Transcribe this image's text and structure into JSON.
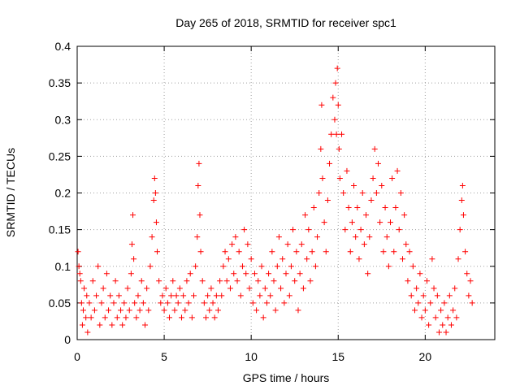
{
  "chart_data": {
    "type": "scatter",
    "title": "Day 265 of 2018, SRMTID for receiver spc1",
    "xlabel": "GPS time / hours",
    "ylabel": "SRMTID / TECUs",
    "xlim": [
      0,
      24
    ],
    "ylim": [
      0,
      0.4
    ],
    "grid": true,
    "marker": "+",
    "series_color": "#ff0000",
    "x_ticks": [
      {
        "value": 0,
        "label": "0"
      },
      {
        "value": 5,
        "label": "5"
      },
      {
        "value": 10,
        "label": "10"
      },
      {
        "value": 15,
        "label": "15"
      },
      {
        "value": 20,
        "label": "20"
      }
    ],
    "y_ticks": [
      {
        "value": 0,
        "label": "0"
      },
      {
        "value": 0.05,
        "label": "0.05"
      },
      {
        "value": 0.1,
        "label": "0.1"
      },
      {
        "value": 0.15,
        "label": "0.15"
      },
      {
        "value": 0.2,
        "label": "0.2"
      },
      {
        "value": 0.25,
        "label": "0.25"
      },
      {
        "value": 0.3,
        "label": "0.3"
      },
      {
        "value": 0.35,
        "label": "0.35"
      },
      {
        "value": 0.4,
        "label": "0.4"
      }
    ],
    "series": [
      {
        "name": "SRMTID",
        "points": [
          [
            0.05,
            0.12
          ],
          [
            0.1,
            0.1
          ],
          [
            0.15,
            0.09
          ],
          [
            0.2,
            0.08
          ],
          [
            0.25,
            0.05
          ],
          [
            0.3,
            0.02
          ],
          [
            0.35,
            0.04
          ],
          [
            0.4,
            0.07
          ],
          [
            0.5,
            0.03
          ],
          [
            0.55,
            0.06
          ],
          [
            0.6,
            0.01
          ],
          [
            0.7,
            0.05
          ],
          [
            0.8,
            0.03
          ],
          [
            0.9,
            0.08
          ],
          [
            1.0,
            0.04
          ],
          [
            1.1,
            0.06
          ],
          [
            1.2,
            0.1
          ],
          [
            1.3,
            0.02
          ],
          [
            1.4,
            0.05
          ],
          [
            1.5,
            0.07
          ],
          [
            1.6,
            0.03
          ],
          [
            1.7,
            0.09
          ],
          [
            1.8,
            0.04
          ],
          [
            1.9,
            0.06
          ],
          [
            2.0,
            0.02
          ],
          [
            2.1,
            0.05
          ],
          [
            2.2,
            0.08
          ],
          [
            2.3,
            0.03
          ],
          [
            2.4,
            0.06
          ],
          [
            2.5,
            0.04
          ],
          [
            2.6,
            0.02
          ],
          [
            2.7,
            0.05
          ],
          [
            2.8,
            0.03
          ],
          [
            2.9,
            0.07
          ],
          [
            3.0,
            0.04
          ],
          [
            3.1,
            0.09
          ],
          [
            3.15,
            0.13
          ],
          [
            3.2,
            0.17
          ],
          [
            3.25,
            0.11
          ],
          [
            3.3,
            0.05
          ],
          [
            3.4,
            0.03
          ],
          [
            3.5,
            0.06
          ],
          [
            3.6,
            0.04
          ],
          [
            3.7,
            0.08
          ],
          [
            3.8,
            0.05
          ],
          [
            3.9,
            0.02
          ],
          [
            4.0,
            0.07
          ],
          [
            4.1,
            0.04
          ],
          [
            4.2,
            0.1
          ],
          [
            4.3,
            0.14
          ],
          [
            4.4,
            0.19
          ],
          [
            4.45,
            0.22
          ],
          [
            4.5,
            0.2
          ],
          [
            4.55,
            0.16
          ],
          [
            4.6,
            0.12
          ],
          [
            4.7,
            0.08
          ],
          [
            4.8,
            0.05
          ],
          [
            4.9,
            0.06
          ],
          [
            5.0,
            0.04
          ],
          [
            5.1,
            0.07
          ],
          [
            5.2,
            0.05
          ],
          [
            5.3,
            0.03
          ],
          [
            5.4,
            0.06
          ],
          [
            5.5,
            0.08
          ],
          [
            5.6,
            0.04
          ],
          [
            5.7,
            0.06
          ],
          [
            5.8,
            0.05
          ],
          [
            5.9,
            0.07
          ],
          [
            6.0,
            0.03
          ],
          [
            6.1,
            0.06
          ],
          [
            6.2,
            0.04
          ],
          [
            6.3,
            0.08
          ],
          [
            6.4,
            0.05
          ],
          [
            6.5,
            0.09
          ],
          [
            6.6,
            0.03
          ],
          [
            6.7,
            0.06
          ],
          [
            6.8,
            0.1
          ],
          [
            6.9,
            0.14
          ],
          [
            6.95,
            0.21
          ],
          [
            7.0,
            0.24
          ],
          [
            7.05,
            0.17
          ],
          [
            7.1,
            0.12
          ],
          [
            7.2,
            0.08
          ],
          [
            7.3,
            0.05
          ],
          [
            7.4,
            0.03
          ],
          [
            7.5,
            0.06
          ],
          [
            7.6,
            0.04
          ],
          [
            7.7,
            0.07
          ],
          [
            7.8,
            0.05
          ],
          [
            7.9,
            0.03
          ],
          [
            8.0,
            0.06
          ],
          [
            8.1,
            0.04
          ],
          [
            8.2,
            0.08
          ],
          [
            8.3,
            0.06
          ],
          [
            8.4,
            0.1
          ],
          [
            8.5,
            0.12
          ],
          [
            8.6,
            0.08
          ],
          [
            8.7,
            0.11
          ],
          [
            8.8,
            0.07
          ],
          [
            8.9,
            0.13
          ],
          [
            9.0,
            0.09
          ],
          [
            9.1,
            0.14
          ],
          [
            9.2,
            0.08
          ],
          [
            9.3,
            0.12
          ],
          [
            9.4,
            0.06
          ],
          [
            9.5,
            0.1
          ],
          [
            9.6,
            0.15
          ],
          [
            9.7,
            0.09
          ],
          [
            9.8,
            0.13
          ],
          [
            9.9,
            0.07
          ],
          [
            10.0,
            0.11
          ],
          [
            10.1,
            0.05
          ],
          [
            10.2,
            0.09
          ],
          [
            10.3,
            0.04
          ],
          [
            10.4,
            0.08
          ],
          [
            10.5,
            0.06
          ],
          [
            10.6,
            0.1
          ],
          [
            10.7,
            0.03
          ],
          [
            10.8,
            0.07
          ],
          [
            10.9,
            0.05
          ],
          [
            11.0,
            0.09
          ],
          [
            11.1,
            0.06
          ],
          [
            11.2,
            0.12
          ],
          [
            11.3,
            0.08
          ],
          [
            11.4,
            0.04
          ],
          [
            11.5,
            0.1
          ],
          [
            11.6,
            0.14
          ],
          [
            11.7,
            0.07
          ],
          [
            11.8,
            0.11
          ],
          [
            11.9,
            0.05
          ],
          [
            12.0,
            0.09
          ],
          [
            12.1,
            0.13
          ],
          [
            12.2,
            0.06
          ],
          [
            12.3,
            0.1
          ],
          [
            12.4,
            0.15
          ],
          [
            12.5,
            0.08
          ],
          [
            12.6,
            0.12
          ],
          [
            12.7,
            0.04
          ],
          [
            12.8,
            0.09
          ],
          [
            12.9,
            0.13
          ],
          [
            13.0,
            0.07
          ],
          [
            13.1,
            0.17
          ],
          [
            13.2,
            0.11
          ],
          [
            13.3,
            0.15
          ],
          [
            13.4,
            0.08
          ],
          [
            13.5,
            0.12
          ],
          [
            13.6,
            0.18
          ],
          [
            13.7,
            0.1
          ],
          [
            13.8,
            0.14
          ],
          [
            13.9,
            0.2
          ],
          [
            14.0,
            0.26
          ],
          [
            14.05,
            0.32
          ],
          [
            14.1,
            0.22
          ],
          [
            14.2,
            0.16
          ],
          [
            14.3,
            0.12
          ],
          [
            14.4,
            0.19
          ],
          [
            14.5,
            0.24
          ],
          [
            14.6,
            0.28
          ],
          [
            14.7,
            0.33
          ],
          [
            14.8,
            0.3
          ],
          [
            14.85,
            0.35
          ],
          [
            14.9,
            0.28
          ],
          [
            14.95,
            0.37
          ],
          [
            15.0,
            0.32
          ],
          [
            15.05,
            0.26
          ],
          [
            15.1,
            0.22
          ],
          [
            15.2,
            0.28
          ],
          [
            15.3,
            0.2
          ],
          [
            15.4,
            0.15
          ],
          [
            15.5,
            0.23
          ],
          [
            15.6,
            0.18
          ],
          [
            15.7,
            0.12
          ],
          [
            15.8,
            0.16
          ],
          [
            15.9,
            0.21
          ],
          [
            16.0,
            0.14
          ],
          [
            16.1,
            0.18
          ],
          [
            16.2,
            0.11
          ],
          [
            16.3,
            0.15
          ],
          [
            16.4,
            0.2
          ],
          [
            16.5,
            0.13
          ],
          [
            16.6,
            0.17
          ],
          [
            16.7,
            0.09
          ],
          [
            16.8,
            0.14
          ],
          [
            16.9,
            0.19
          ],
          [
            17.0,
            0.22
          ],
          [
            17.1,
            0.26
          ],
          [
            17.2,
            0.2
          ],
          [
            17.3,
            0.24
          ],
          [
            17.4,
            0.16
          ],
          [
            17.5,
            0.21
          ],
          [
            17.6,
            0.12
          ],
          [
            17.7,
            0.18
          ],
          [
            17.8,
            0.14
          ],
          [
            17.9,
            0.1
          ],
          [
            18.0,
            0.16
          ],
          [
            18.1,
            0.22
          ],
          [
            18.2,
            0.12
          ],
          [
            18.3,
            0.18
          ],
          [
            18.4,
            0.23
          ],
          [
            18.5,
            0.15
          ],
          [
            18.6,
            0.2
          ],
          [
            18.7,
            0.11
          ],
          [
            18.8,
            0.17
          ],
          [
            18.9,
            0.13
          ],
          [
            19.0,
            0.08
          ],
          [
            19.1,
            0.12
          ],
          [
            19.2,
            0.06
          ],
          [
            19.3,
            0.1
          ],
          [
            19.4,
            0.04
          ],
          [
            19.5,
            0.07
          ],
          [
            19.6,
            0.05
          ],
          [
            19.7,
            0.09
          ],
          [
            19.8,
            0.03
          ],
          [
            19.9,
            0.06
          ],
          [
            20.0,
            0.04
          ],
          [
            20.1,
            0.08
          ],
          [
            20.2,
            0.02
          ],
          [
            20.3,
            0.05
          ],
          [
            20.4,
            0.11
          ],
          [
            20.5,
            0.07
          ],
          [
            20.6,
            0.03
          ],
          [
            20.7,
            0.06
          ],
          [
            20.8,
            0.01
          ],
          [
            20.9,
            0.04
          ],
          [
            21.0,
            0.02
          ],
          [
            21.1,
            0.05
          ],
          [
            21.2,
            0.01
          ],
          [
            21.3,
            0.03
          ],
          [
            21.4,
            0.06
          ],
          [
            21.5,
            0.02
          ],
          [
            21.6,
            0.04
          ],
          [
            21.7,
            0.07
          ],
          [
            21.8,
            0.03
          ],
          [
            21.9,
            0.11
          ],
          [
            22.0,
            0.15
          ],
          [
            22.1,
            0.19
          ],
          [
            22.15,
            0.21
          ],
          [
            22.2,
            0.17
          ],
          [
            22.3,
            0.12
          ],
          [
            22.4,
            0.09
          ],
          [
            22.5,
            0.06
          ],
          [
            22.6,
            0.08
          ],
          [
            22.7,
            0.05
          ]
        ]
      }
    ]
  }
}
